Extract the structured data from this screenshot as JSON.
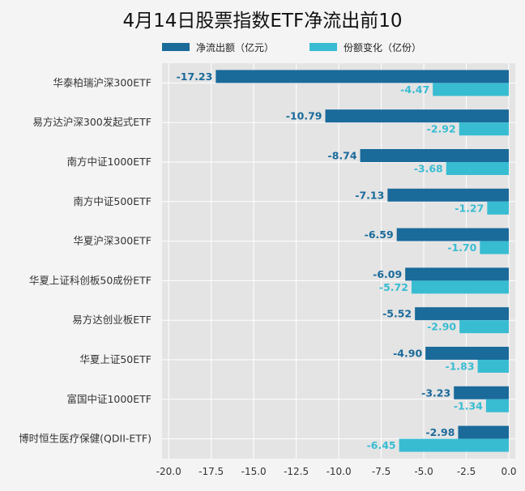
{
  "chart_data": {
    "type": "bar",
    "orientation": "horizontal",
    "title": "4月14日股票指数ETF净流出前10",
    "categories": [
      "华泰柏瑞沪深300ETF",
      "易方达沪深300发起式ETF",
      "南方中证1000ETF",
      "南方中证500ETF",
      "华夏沪深300ETF",
      "华夏上证科创板50成份ETF",
      "易方达创业板ETF",
      "华夏上证50ETF",
      "富国中证1000ETF",
      "博时恒生医疗保健(QDII-ETF)"
    ],
    "series": [
      {
        "name": "净流出额（亿元）",
        "color": "#1a6a9a",
        "values": [
          -17.23,
          -10.79,
          -8.74,
          -7.13,
          -6.59,
          -6.09,
          -5.52,
          -4.9,
          -3.23,
          -2.98
        ],
        "labels": [
          "-17.23",
          "-10.79",
          "-8.74",
          "-7.13",
          "-6.59",
          "-6.09",
          "-5.52",
          "-4.90",
          "-3.23",
          "-2.98"
        ]
      },
      {
        "name": "份额变化（亿份）",
        "color": "#38bcd2",
        "values": [
          -4.47,
          -2.92,
          -3.68,
          -1.27,
          -1.7,
          -5.72,
          -2.9,
          -1.83,
          -1.34,
          -6.45
        ],
        "labels": [
          "-4.47",
          "-2.92",
          "-3.68",
          "-1.27",
          "-1.70",
          "-5.72",
          "-2.90",
          "-1.83",
          "-1.34",
          "-6.45"
        ]
      }
    ],
    "xlim": [
      -21.2,
      0
    ],
    "xticks": [
      -20,
      -17.5,
      -15,
      -12.5,
      -10,
      -7.5,
      -5,
      -2.5,
      0
    ],
    "xtick_labels": [
      "-20.0",
      "-17.5",
      "-15.0",
      "-12.5",
      "-10.0",
      "-7.5",
      "-5.0",
      "-2.5",
      "0.0"
    ],
    "legend_position": "top",
    "grid": true,
    "plot_background": "#e4e4e4"
  }
}
